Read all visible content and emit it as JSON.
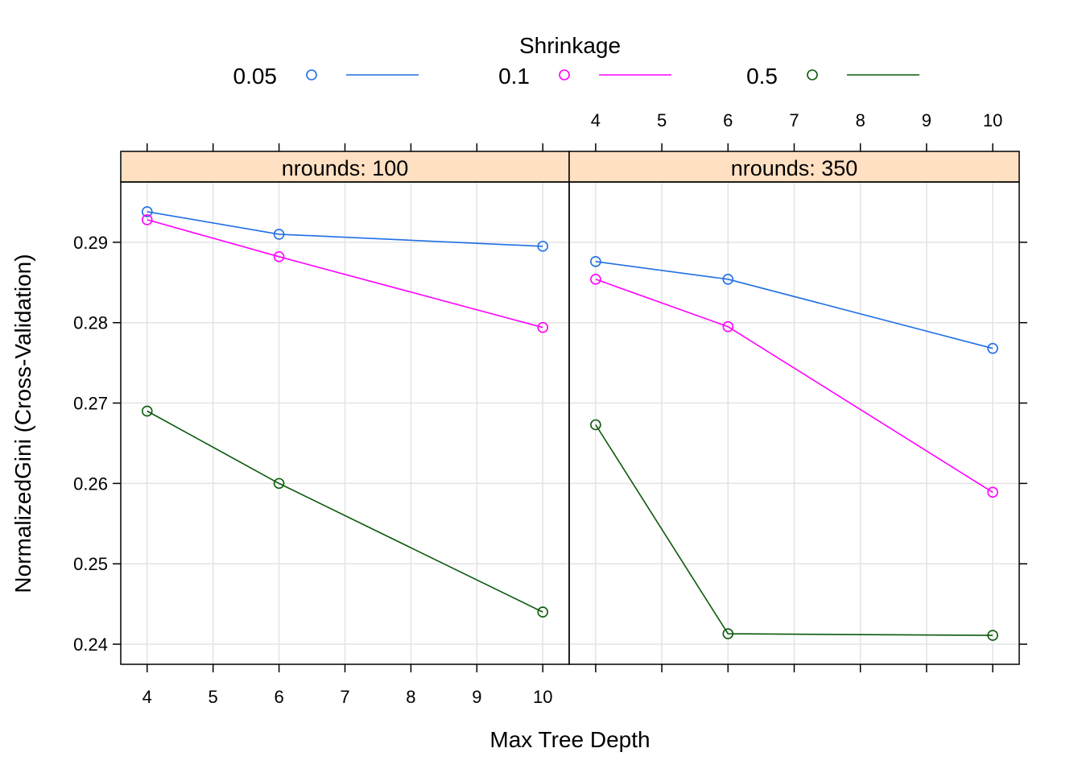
{
  "chart_data": {
    "type": "line",
    "legend": {
      "title": "Shrinkage",
      "placement": "top",
      "entries": [
        {
          "label": "0.05",
          "color": "#1f6fe5"
        },
        {
          "label": "0.1",
          "color": "#ff00ff"
        },
        {
          "label": "0.5",
          "color": "#0b5a0b"
        }
      ]
    },
    "xlabel": "Max Tree Depth",
    "ylabel": "NormalizedGini (Cross-Validation)",
    "xlim": [
      3.6,
      10.4
    ],
    "ylim": [
      0.2375,
      0.2975
    ],
    "x_ticks": [
      4,
      5,
      6,
      7,
      8,
      9,
      10
    ],
    "x_tick_labels": [
      "4",
      "5",
      "6",
      "7",
      "8",
      "9",
      "10"
    ],
    "y_ticks": [
      0.24,
      0.25,
      0.26,
      0.27,
      0.28,
      0.29
    ],
    "y_tick_labels": [
      "0.24",
      "0.25",
      "0.26",
      "0.27",
      "0.28",
      "0.29"
    ],
    "grid": true,
    "panels": [
      {
        "strip": "nrounds: 100",
        "series": [
          {
            "name": "0.05",
            "color": "#1f6fe5",
            "x": [
              4,
              6,
              10
            ],
            "y": [
              0.2938,
              0.291,
              0.2895
            ]
          },
          {
            "name": "0.1",
            "color": "#ff00ff",
            "x": [
              4,
              6,
              10
            ],
            "y": [
              0.2928,
              0.2882,
              0.2794
            ]
          },
          {
            "name": "0.5",
            "color": "#0b5a0b",
            "x": [
              4,
              6,
              10
            ],
            "y": [
              0.269,
              0.26,
              0.244
            ]
          }
        ]
      },
      {
        "strip": "nrounds: 350",
        "series": [
          {
            "name": "0.05",
            "color": "#1f6fe5",
            "x": [
              4,
              6,
              10
            ],
            "y": [
              0.2876,
              0.2854,
              0.2768
            ]
          },
          {
            "name": "0.1",
            "color": "#ff00ff",
            "x": [
              4,
              6,
              10
            ],
            "y": [
              0.2854,
              0.2795,
              0.2589
            ]
          },
          {
            "name": "0.5",
            "color": "#0b5a0b",
            "x": [
              4,
              6,
              10
            ],
            "y": [
              0.2673,
              0.2413,
              0.2411
            ]
          }
        ]
      }
    ]
  }
}
